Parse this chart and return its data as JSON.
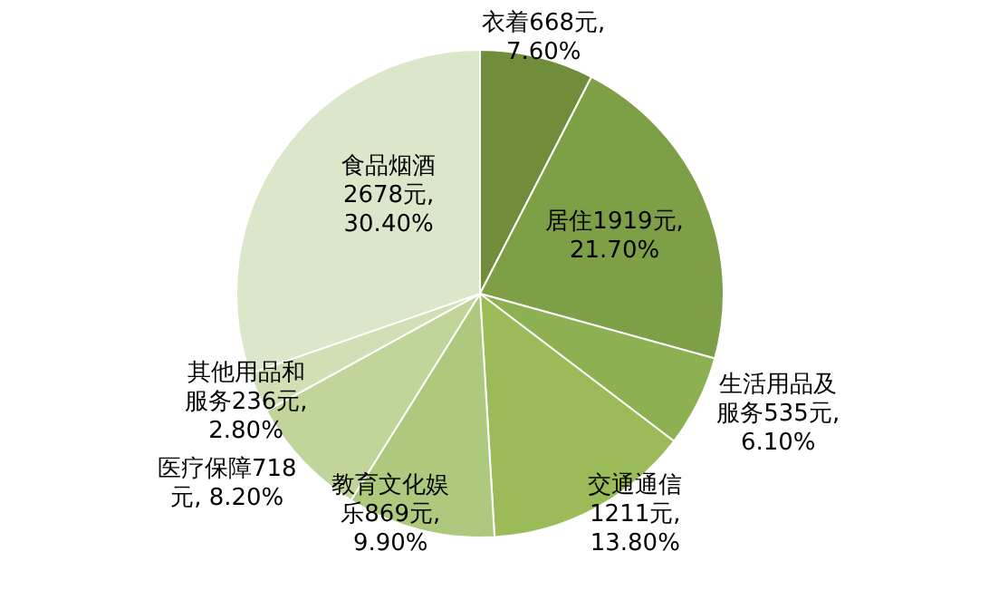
{
  "chart_data": {
    "type": "pie",
    "categories": [
      "衣着",
      "居住",
      "生活用品及服务",
      "交通通信",
      "教育文化娱乐",
      "医疗保障",
      "其他用品和服务",
      "食品烟酒"
    ],
    "values": [
      668,
      1919,
      535,
      1211,
      869,
      718,
      236,
      2678
    ],
    "value_labels": [
      "668元, 7.60%",
      "1919元, 21.70%",
      "535元, 6.10%",
      "1211元, 13.80%",
      "869元, 9.90%",
      "718元, 8.20%",
      "236元, 2.80%",
      "2678元, 30.40%"
    ],
    "colors": [
      "#6f8d3b",
      "#7d9f45",
      "#8cb052",
      "#9bbb59",
      "#adc97d",
      "#c1d59b",
      "#d2dfb5",
      "#dce6cb"
    ],
    "legend": false
  }
}
